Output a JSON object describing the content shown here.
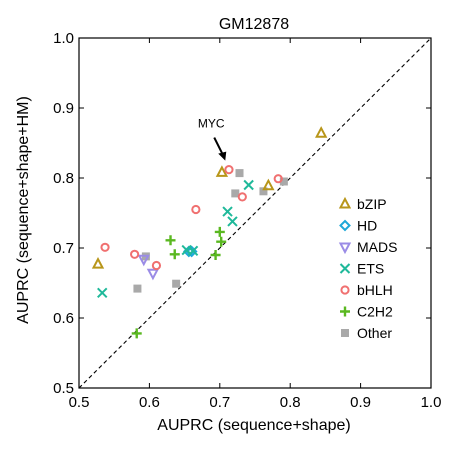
{
  "chart_data": {
    "type": "scatter",
    "title": "GM12878",
    "xlabel": "AUPRC (sequence+shape)",
    "ylabel": "AUPRC (sequence+shape+HM)",
    "xlim": [
      0.5,
      1.0
    ],
    "ylim": [
      0.5,
      1.0
    ],
    "xticks": [
      "0.5",
      "0.6",
      "0.7",
      "0.8",
      "0.9",
      "1.0"
    ],
    "yticks": [
      "0.5",
      "0.6",
      "0.7",
      "0.8",
      "0.9",
      "1.0"
    ],
    "grid": false,
    "diagonal": true,
    "legend_position": "right",
    "annotation": {
      "text": "MYC",
      "x": 0.712,
      "y": 0.812
    },
    "series": [
      {
        "name": "bZIP",
        "marker": "triangle",
        "color": "#b8961a",
        "points": [
          [
            0.527,
            0.677
          ],
          [
            0.703,
            0.808
          ],
          [
            0.769,
            0.789
          ],
          [
            0.844,
            0.864
          ]
        ]
      },
      {
        "name": "HD",
        "marker": "diamond",
        "color": "#1ea8d8",
        "points": [
          [
            0.656,
            0.695
          ],
          [
            0.66,
            0.695
          ]
        ]
      },
      {
        "name": "MADS",
        "marker": "triangle-down",
        "color": "#9b8ce6",
        "points": [
          [
            0.592,
            0.684
          ],
          [
            0.605,
            0.664
          ]
        ]
      },
      {
        "name": "ETS",
        "marker": "x",
        "color": "#1fb99a",
        "points": [
          [
            0.533,
            0.636
          ],
          [
            0.653,
            0.697
          ],
          [
            0.662,
            0.696
          ],
          [
            0.711,
            0.752
          ],
          [
            0.718,
            0.738
          ],
          [
            0.741,
            0.79
          ]
        ]
      },
      {
        "name": "bHLH",
        "marker": "circle",
        "color": "#f07070",
        "points": [
          [
            0.537,
            0.701
          ],
          [
            0.579,
            0.691
          ],
          [
            0.61,
            0.675
          ],
          [
            0.666,
            0.755
          ],
          [
            0.713,
            0.812
          ],
          [
            0.732,
            0.773
          ],
          [
            0.783,
            0.799
          ]
        ]
      },
      {
        "name": "C2H2",
        "marker": "plus",
        "color": "#5ab820",
        "points": [
          [
            0.582,
            0.578
          ],
          [
            0.63,
            0.711
          ],
          [
            0.636,
            0.691
          ],
          [
            0.694,
            0.69
          ],
          [
            0.7,
            0.723
          ],
          [
            0.702,
            0.709
          ]
        ]
      },
      {
        "name": "Other",
        "marker": "square",
        "color": "#a9a9a9",
        "points": [
          [
            0.583,
            0.642
          ],
          [
            0.595,
            0.688
          ],
          [
            0.638,
            0.649
          ],
          [
            0.722,
            0.778
          ],
          [
            0.728,
            0.807
          ],
          [
            0.762,
            0.781
          ],
          [
            0.791,
            0.795
          ]
        ]
      }
    ]
  }
}
